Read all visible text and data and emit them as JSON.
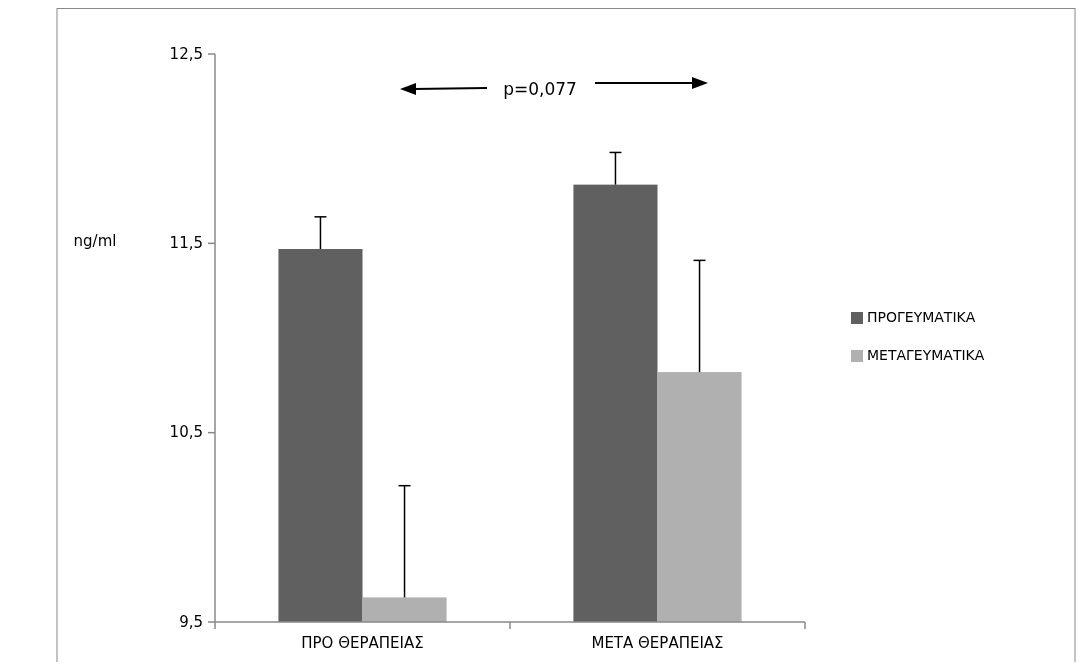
{
  "chart_data": {
    "type": "bar",
    "ylabel": "ng/ml",
    "categories": [
      "ΠΡΟ ΘΕΡΑΠΕΙΑΣ",
      "ΜΕΤΑ ΘΕΡΑΠΕΙΑΣ"
    ],
    "series": [
      {
        "name": "ΠΡΟΓΕΥΜΑΤΙΚΑ",
        "color": "#606060",
        "values": [
          11.47,
          11.81
        ],
        "errors": [
          0.17,
          0.17
        ]
      },
      {
        "name": "ΜΕΤΑΓΕΥΜΑΤΙΚΑ",
        "color": "#b0b0b0",
        "values": [
          9.63,
          10.82
        ],
        "errors": [
          0.59,
          0.59
        ]
      }
    ],
    "ylim": [
      9.5,
      12.5
    ],
    "yticks": [
      {
        "value": 9.5,
        "label": "9,5"
      },
      {
        "value": 10.5,
        "label": "10,5"
      },
      {
        "value": 11.5,
        "label": "11,5"
      },
      {
        "value": 12.5,
        "label": "12,5"
      }
    ],
    "annotations": [
      "p=0,077"
    ],
    "legend": "right",
    "grid": false
  }
}
